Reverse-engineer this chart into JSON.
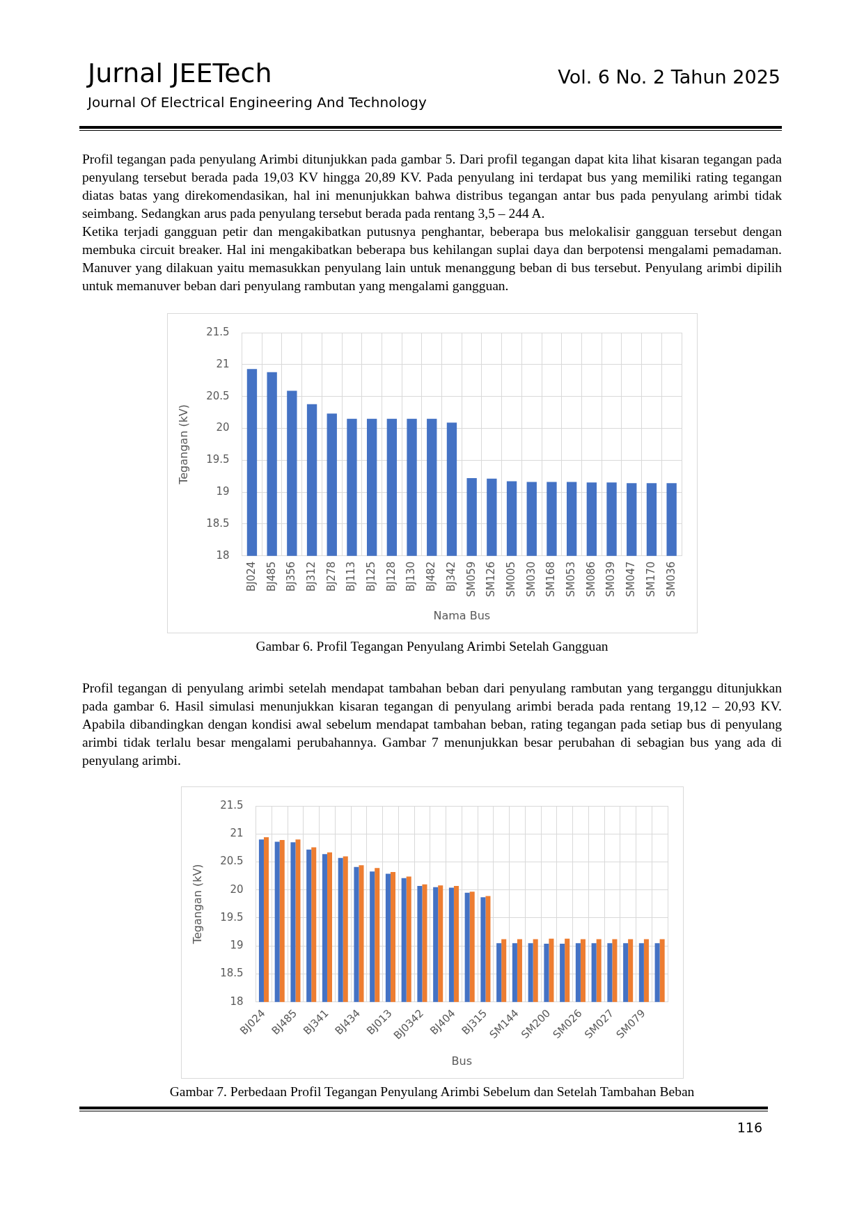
{
  "chart_data": [
    {
      "type": "bar",
      "title": "Gambar 6. Profil Tegangan Penyulang Arimbi Setelah Gangguan",
      "xlabel": "Nama Bus",
      "ylabel": "Tegangan (kV)",
      "annotations": [
        "Jurnal JEETech",
        "Journal Of Electrical Engineering And Technology",
        "Vol. 6 No. 2 Tahun 2025",
        "Profil tegangan pada penyulang Arimbi ditunjukkan pada gambar 5. Dari profil tegangan dapat kita lihat kisaran tegangan pada penyulang tersebut berada pada 19,03 KV hingga 20,89 KV. Pada penyulang ini terdapat bus yang memiliki rating tegangan diatas batas yang direkomendasikan, hal ini menunjukkan bahwa distribus tegangan antar bus pada penyulang arimbi tidak seimbang. Sedangkan arus pada penyulang tersebut berada pada rentang 3,5 – 244 A.",
        "Ketika terjadi gangguan petir dan mengakibatkan putusnya penghantar, beberapa bus melokalisir gangguan tersebut dengan membuka circuit breaker. Hal ini mengakibatkan beberapa bus kehilangan suplai daya dan berpotensi mengalami pemadaman. Manuver yang dilakuan yaitu memasukkan penyulang lain untuk menanggung beban di bus tersebut. Penyulang arimbi dipilih untuk memanuver beban dari penyulang rambutan yang mengalami gangguan."
      ],
      "categories": [
        "BJ024",
        "BJ485",
        "BJ356",
        "BJ312",
        "BJ278",
        "BJ113",
        "BJ125",
        "BJ128",
        "BJ130",
        "BJ482",
        "BJ342",
        "SM059",
        "SM126",
        "SM005",
        "SM030",
        "SM168",
        "SM053",
        "SM086",
        "SM039",
        "SM047",
        "SM170",
        "SM036"
      ],
      "series": [
        {
          "color": "#4472c4",
          "values": [
            20.93,
            20.88,
            20.59,
            20.38,
            20.23,
            20.15,
            20.15,
            20.15,
            20.15,
            20.15,
            20.09,
            19.22,
            19.21,
            19.17,
            19.16,
            19.16,
            19.16,
            19.15,
            19.15,
            19.14,
            19.14,
            19.14
          ]
        }
      ],
      "ylim": [
        18,
        21.5
      ],
      "yticks": [
        18,
        18.5,
        19,
        19.5,
        20,
        20.5,
        21,
        21.5
      ],
      "grid": true,
      "legend": false
    },
    {
      "type": "bar",
      "title": "Gambar 7. Perbedaan Profil Tegangan Penyulang Arimbi Sebelum dan Setelah Tambahan Beban",
      "xlabel": "Bus",
      "ylabel": "Tegangan (kV)",
      "annotations": [
        "Profil tegangan di penyulang arimbi setelah mendapat tambahan beban dari penyulang rambutan yang terganggu ditunjukkan pada gambar 6. Hasil simulasi menunjukkan kisaran tegangan di penyulang arimbi berada pada rentang 19,12 – 20,93 KV. Apabila dibandingkan dengan kondisi awal sebelum mendapat tambahan beban, rating tegangan pada setiap bus di penyulang arimbi tidak terlalu besar mengalami perubahannya. Gambar 7 menunjukkan besar perubahan di sebagian bus yang ada di penyulang arimbi.",
        "116"
      ],
      "categories": [
        "BJ024",
        null,
        "BJ485",
        null,
        "BJ341",
        null,
        "BJ434",
        null,
        "BJ013",
        null,
        "BJ0342",
        null,
        "BJ404",
        null,
        "BJ315",
        null,
        "SM144",
        null,
        "SM200",
        null,
        "SM026",
        null,
        "SM027",
        null,
        "SM079",
        null
      ],
      "series": [
        {
          "color": "#4472c4",
          "values": [
            20.9,
            20.86,
            20.85,
            20.72,
            20.64,
            20.57,
            20.41,
            20.33,
            20.29,
            20.21,
            20.07,
            20.05,
            20.04,
            19.95,
            19.87,
            19.05,
            19.05,
            19.05,
            19.04,
            19.04,
            19.05,
            19.05,
            19.05,
            19.05,
            19.05,
            19.05
          ]
        },
        {
          "color": "#ed7d31",
          "values": [
            20.94,
            20.89,
            20.9,
            20.76,
            20.67,
            20.6,
            20.44,
            20.39,
            20.32,
            20.24,
            20.1,
            20.08,
            20.07,
            19.97,
            19.89,
            19.12,
            19.12,
            19.12,
            19.13,
            19.13,
            19.12,
            19.12,
            19.12,
            19.12,
            19.12,
            19.12
          ]
        }
      ],
      "ylim": [
        18,
        21.5
      ],
      "yticks": [
        18,
        18.5,
        19,
        19.5,
        20,
        20.5,
        21,
        21.5
      ],
      "grid": true,
      "legend": false
    }
  ]
}
